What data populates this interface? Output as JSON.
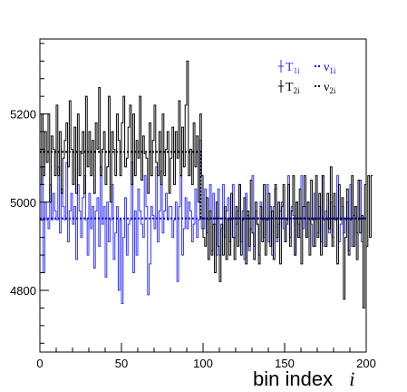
{
  "chart_data": {
    "type": "line",
    "title": "",
    "xlabel": "bin index",
    "xlabel_symbol": "i",
    "ylabel": "",
    "xlim": [
      0,
      200
    ],
    "ylim": [
      4660,
      5370
    ],
    "x_ticks": [
      0,
      50,
      100,
      150,
      200
    ],
    "x_tick_labels": [
      "0",
      "50",
      "100",
      "150",
      "200"
    ],
    "y_ticks": [
      4800,
      5000,
      5200
    ],
    "y_tick_labels": [
      "4800",
      "5000",
      "5200"
    ],
    "grid": false,
    "legend_position": "top-right",
    "legend": [
      {
        "symbol": "T",
        "sub": "1i",
        "color": "#3333ff",
        "style": "histogram"
      },
      {
        "symbol": "ν",
        "sub": "1i",
        "color": "#0000ee",
        "style": "dotted"
      },
      {
        "symbol": "T",
        "sub": "2i",
        "color": "#000000",
        "style": "histogram"
      },
      {
        "symbol": "ν",
        "sub": "2i",
        "color": "#000000",
        "style": "dotted"
      }
    ],
    "series": [
      {
        "name": "T_1i",
        "color": "#3333ff",
        "style": "histogram",
        "values": [
          4960,
          5080,
          4840,
          5000,
          4960,
          4940,
          5040,
          4960,
          5020,
          4980,
          4960,
          5080,
          4930,
          5030,
          4990,
          4960,
          5090,
          4910,
          4980,
          5020,
          4950,
          4990,
          4870,
          5040,
          4980,
          4920,
          5010,
          5060,
          4960,
          4880,
          5020,
          4940,
          4990,
          4850,
          4980,
          5010,
          4900,
          5080,
          4950,
          4990,
          4830,
          5000,
          4910,
          4960,
          5040,
          4870,
          4930,
          4990,
          4800,
          4960,
          4770,
          4920,
          5010,
          4880,
          4950,
          4960,
          5090,
          4840,
          4980,
          4880,
          5030,
          4980,
          4950,
          4920,
          5060,
          4990,
          4790,
          4860,
          4990,
          4970,
          4940,
          5080,
          4910,
          4980,
          5070,
          4930,
          4980,
          5020,
          4960,
          4990,
          4990,
          4920,
          4960,
          5000,
          4820,
          4990,
          5060,
          4880,
          4940,
          5010,
          4940,
          5000,
          4980,
          4910,
          4950,
          5030,
          4920,
          4960,
          5140,
          4940,
          4940,
          5030,
          4930,
          4960,
          5040,
          4890,
          5020,
          4950,
          4880,
          5030,
          4880,
          4940,
          5040,
          4920,
          4980,
          5010,
          4910,
          4960,
          5040,
          4920,
          4950,
          4980,
          5040,
          4910,
          4980,
          4870,
          5020,
          4970,
          4890,
          4940,
          5060,
          4900,
          4980,
          4950,
          4880,
          5000,
          4960,
          4920,
          4960,
          5040,
          4910,
          4990,
          4880,
          4990,
          5030,
          4910,
          4950,
          4980,
          5000,
          4940,
          4910,
          4950,
          5060,
          4920,
          4990,
          4970,
          4880,
          5000,
          4950,
          4920,
          5060,
          4940,
          4990,
          4920,
          5000,
          4960,
          4950,
          4900,
          5020,
          4960,
          4930,
          4990,
          4910,
          5060,
          4900,
          4980,
          4960,
          4930,
          5000,
          4920,
          4990,
          4960,
          5060,
          4910,
          4950,
          4990,
          4930,
          4960,
          5000,
          4890,
          5040,
          4900,
          4970,
          4990,
          4930,
          4960,
          5050,
          4910
        ]
      },
      {
        "name": "T_2i",
        "color": "#000000",
        "style": "histogram",
        "values": [
          5040,
          5200,
          5060,
          5160,
          5090,
          5200,
          5000,
          5150,
          5120,
          5060,
          5220,
          5060,
          5160,
          5020,
          5100,
          5140,
          5180,
          5080,
          5230,
          5120,
          5040,
          5170,
          5020,
          5200,
          5060,
          5110,
          5160,
          5020,
          5240,
          5080,
          5160,
          5060,
          5140,
          5020,
          5180,
          5120,
          5260,
          5060,
          5120,
          5160,
          5040,
          5080,
          5240,
          5000,
          5160,
          5120,
          5060,
          5200,
          5140,
          5060,
          5180,
          5240,
          5080,
          5100,
          5170,
          5220,
          5040,
          5200,
          5060,
          5140,
          5100,
          5240,
          5050,
          5150,
          5110,
          5100,
          5020,
          5180,
          5060,
          5140,
          5220,
          5090,
          5060,
          5160,
          5040,
          5200,
          5060,
          5120,
          5160,
          5020,
          5100,
          5170,
          5040,
          5160,
          5100,
          5230,
          5060,
          5170,
          5080,
          5220,
          5320,
          5060,
          5120,
          5040,
          5180,
          5080,
          5150,
          5000,
          5200,
          5060,
          4920,
          4900,
          5010,
          4870,
          4980,
          4880,
          4950,
          4840,
          5000,
          4900,
          4820,
          4950,
          4880,
          4990,
          4870,
          4960,
          4880,
          5020,
          4920,
          4870,
          4990,
          4900,
          5040,
          4880,
          4960,
          5010,
          4860,
          4980,
          4900,
          5050,
          4930,
          4870,
          5000,
          4950,
          4860,
          4990,
          4910,
          5040,
          4880,
          4960,
          5020,
          4900,
          4980,
          4870,
          5040,
          4920,
          5000,
          4860,
          4990,
          5040,
          4910,
          4960,
          5040,
          4900,
          4980,
          5060,
          4880,
          5000,
          4920,
          5030,
          4860,
          4990,
          5060,
          4920,
          5000,
          4880,
          5050,
          4960,
          4900,
          5060,
          4920,
          5020,
          4880,
          5060,
          4960,
          4900,
          5020,
          4940,
          5080,
          4900,
          5020,
          4960,
          4860,
          5040,
          4960,
          5010,
          4780,
          4920,
          5030,
          4880,
          4960,
          5060,
          4900,
          4990,
          4870,
          5050,
          4930,
          4970,
          4760,
          5040,
          4900,
          5060,
          4920,
          5060
        ]
      },
      {
        "name": "ν_1i",
        "color": "#0000ee",
        "style": "dotted",
        "x": [
          0,
          200
        ],
        "values": [
          4963,
          4963
        ]
      },
      {
        "name": "ν_2i",
        "color": "#000000",
        "style": "dotted",
        "segments": [
          {
            "x": [
              0,
              98.5
            ],
            "value": 5114
          },
          {
            "x": [
              98.5,
              200
            ],
            "value": 4963
          }
        ]
      }
    ]
  }
}
